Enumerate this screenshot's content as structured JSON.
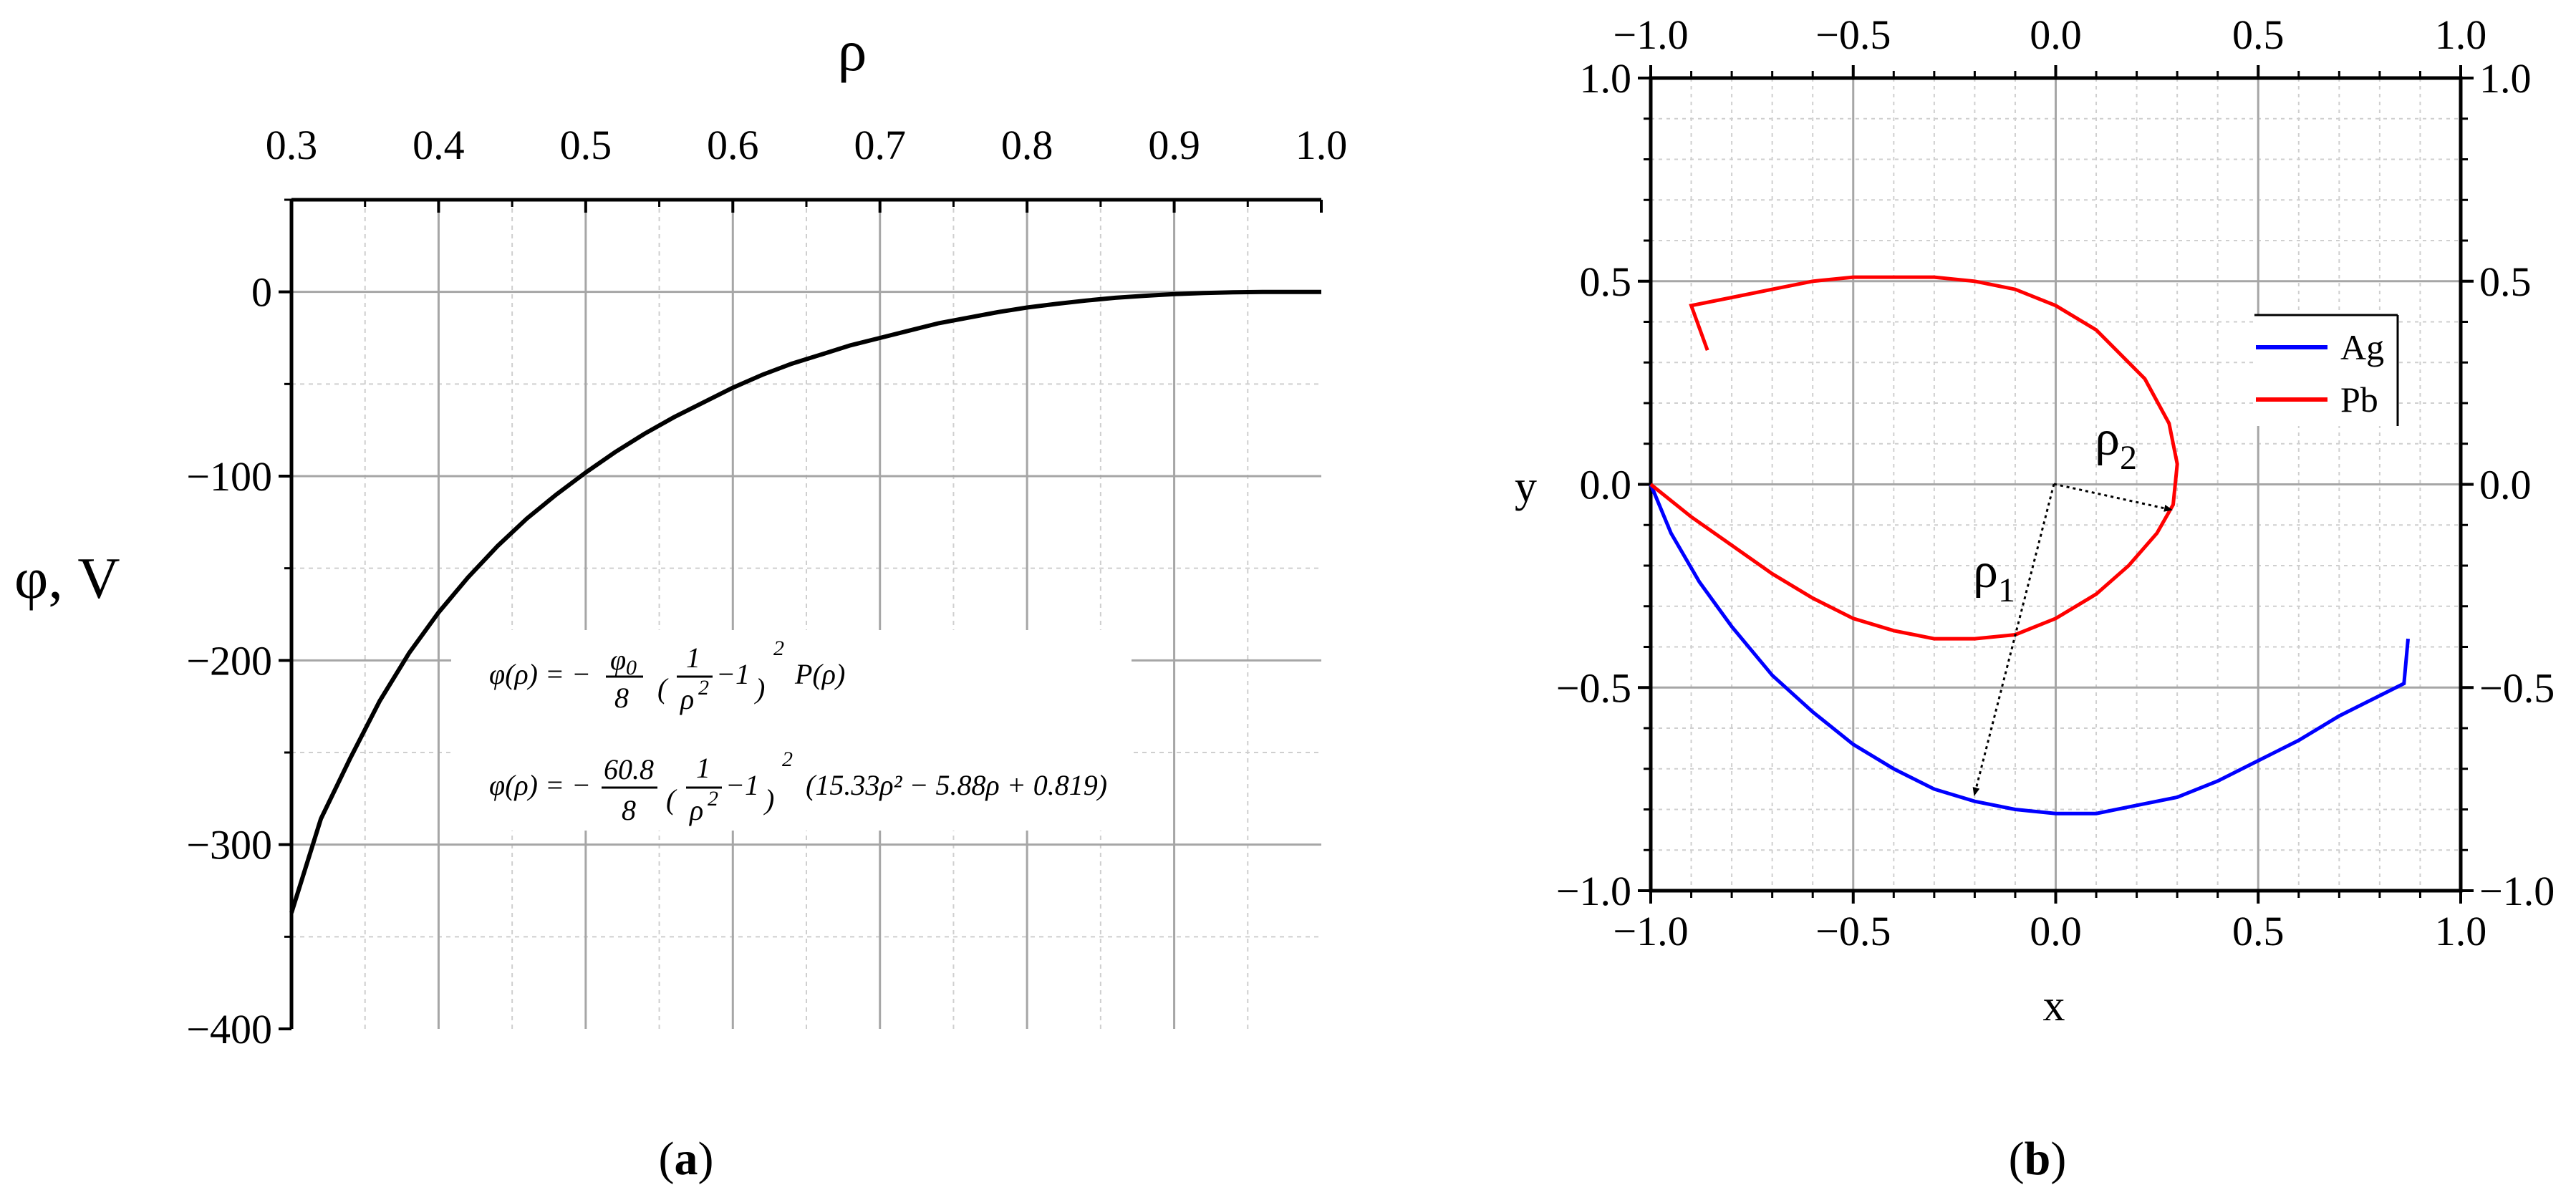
{
  "colors": {
    "ag": "#0000ff",
    "pb": "#ff0000",
    "curve": "#000000",
    "grid": "#a6a6a6",
    "minor_grid": "#cfcfcf"
  },
  "panel_labels": {
    "a": "a",
    "b": "b"
  },
  "chart_data": [
    {
      "type": "line",
      "panel": "(a)",
      "xlabel": "ρ",
      "ylabel": "φ, V",
      "xlim": [
        0.3,
        1.0
      ],
      "ylim": [
        -400,
        50
      ],
      "x_ticks": [
        "0.3",
        "0.4",
        "0.5",
        "0.6",
        "0.7",
        "0.8",
        "0.9",
        "1.0"
      ],
      "y_ticks": [
        "0",
        "−100",
        "−200",
        "−300",
        "−400"
      ],
      "x_axis_position": "top",
      "grid": true,
      "series": [
        {
          "x": [
            0.3,
            0.32,
            0.34,
            0.36,
            0.38,
            0.4,
            0.42,
            0.44,
            0.46,
            0.48,
            0.5,
            0.52,
            0.54,
            0.56,
            0.58,
            0.6,
            0.62,
            0.64,
            0.66,
            0.68,
            0.7,
            0.72,
            0.74,
            0.76,
            0.78,
            0.8,
            0.82,
            0.84,
            0.86,
            0.88,
            0.9,
            0.92,
            0.94,
            0.96,
            0.98,
            1.0
          ],
          "y": [
            -337,
            -286,
            -253,
            -222,
            -196,
            -174,
            -155,
            -138,
            -123,
            -110,
            -98,
            -87,
            -77,
            -68,
            -60,
            -52,
            -45,
            -39,
            -34,
            -29,
            -25,
            -21,
            -17,
            -14,
            -11,
            -8.5,
            -6.5,
            -4.7,
            -3.2,
            -2.1,
            -1.2,
            -0.6,
            -0.2,
            -0.05,
            0,
            0
          ]
        }
      ],
      "annotations": {
        "formula1_lhs": "φ(ρ) = −",
        "formula1_num": "φ",
        "formula1_num_sub": "0",
        "formula1_den": "8",
        "formula1_inner_num": "1",
        "formula1_inner_den": "ρ",
        "formula1_inner_den_sup": "2",
        "formula1_minus1": "−1",
        "formula1_outer_sup": "2",
        "formula1_tail": "P(ρ)",
        "formula2_lhs": "φ(ρ) = −",
        "formula2_num": "60.8",
        "formula2_den": "8",
        "formula2_inner_num": "1",
        "formula2_inner_den": "ρ",
        "formula2_inner_den_sup": "2",
        "formula2_minus1": "−1",
        "formula2_outer_sup": "2",
        "formula2_tail": "(15.33ρ² − 5.88ρ + 0.819)"
      }
    },
    {
      "type": "line",
      "panel": "(b)",
      "xlabel": "x",
      "ylabel": "y",
      "xlim": [
        -1.0,
        1.0
      ],
      "ylim": [
        -1.0,
        1.0
      ],
      "x_ticks": [
        "−1.0",
        "−0.5",
        "0.0",
        "0.5",
        "1.0"
      ],
      "y_ticks": [
        "1.0",
        "0.5",
        "0.0",
        "−0.5",
        "−1.0"
      ],
      "x_top_ticks": [
        "−1.0",
        "−0.5",
        "0.0",
        "0.5",
        "1.0"
      ],
      "y_right_ticks": [
        "1.0",
        "0.5",
        "0.0",
        "−0.5",
        "−1.0"
      ],
      "grid": true,
      "legend": "right",
      "series": [
        {
          "name": "Ag",
          "color": "#0000ff",
          "x": [
            -1.0,
            -0.95,
            -0.88,
            -0.8,
            -0.7,
            -0.6,
            -0.5,
            -0.4,
            -0.3,
            -0.2,
            -0.1,
            0.0,
            0.05,
            0.1,
            0.2,
            0.3,
            0.4,
            0.5,
            0.6,
            0.7,
            0.8,
            0.86,
            0.87
          ],
          "y": [
            0.0,
            -0.12,
            -0.24,
            -0.35,
            -0.47,
            -0.56,
            -0.64,
            -0.7,
            -0.75,
            -0.78,
            -0.8,
            -0.81,
            -0.81,
            -0.81,
            -0.79,
            -0.77,
            -0.73,
            -0.68,
            -0.63,
            -0.57,
            -0.52,
            -0.49,
            -0.38
          ]
        },
        {
          "name": "Pb",
          "color": "#ff0000",
          "x": [
            -1.0,
            -0.9,
            -0.8,
            -0.7,
            -0.6,
            -0.5,
            -0.4,
            -0.3,
            -0.2,
            -0.1,
            0.0,
            0.1,
            0.18,
            0.25,
            0.29,
            0.3,
            0.28,
            0.22,
            0.1,
            0.0,
            -0.1,
            -0.2,
            -0.3,
            -0.4,
            -0.5,
            -0.6,
            -0.7,
            -0.8,
            -0.9,
            -0.86
          ],
          "y": [
            0.0,
            -0.08,
            -0.15,
            -0.22,
            -0.28,
            -0.33,
            -0.36,
            -0.38,
            -0.38,
            -0.37,
            -0.33,
            -0.27,
            -0.2,
            -0.12,
            -0.05,
            0.05,
            0.15,
            0.26,
            0.38,
            0.44,
            0.48,
            0.5,
            0.51,
            0.51,
            0.51,
            0.5,
            0.48,
            0.46,
            0.44,
            0.33
          ]
        }
      ],
      "annotations": {
        "rho1": "ρ",
        "rho1_sub": "1",
        "rho2": "ρ",
        "rho2_sub": "2"
      }
    }
  ]
}
